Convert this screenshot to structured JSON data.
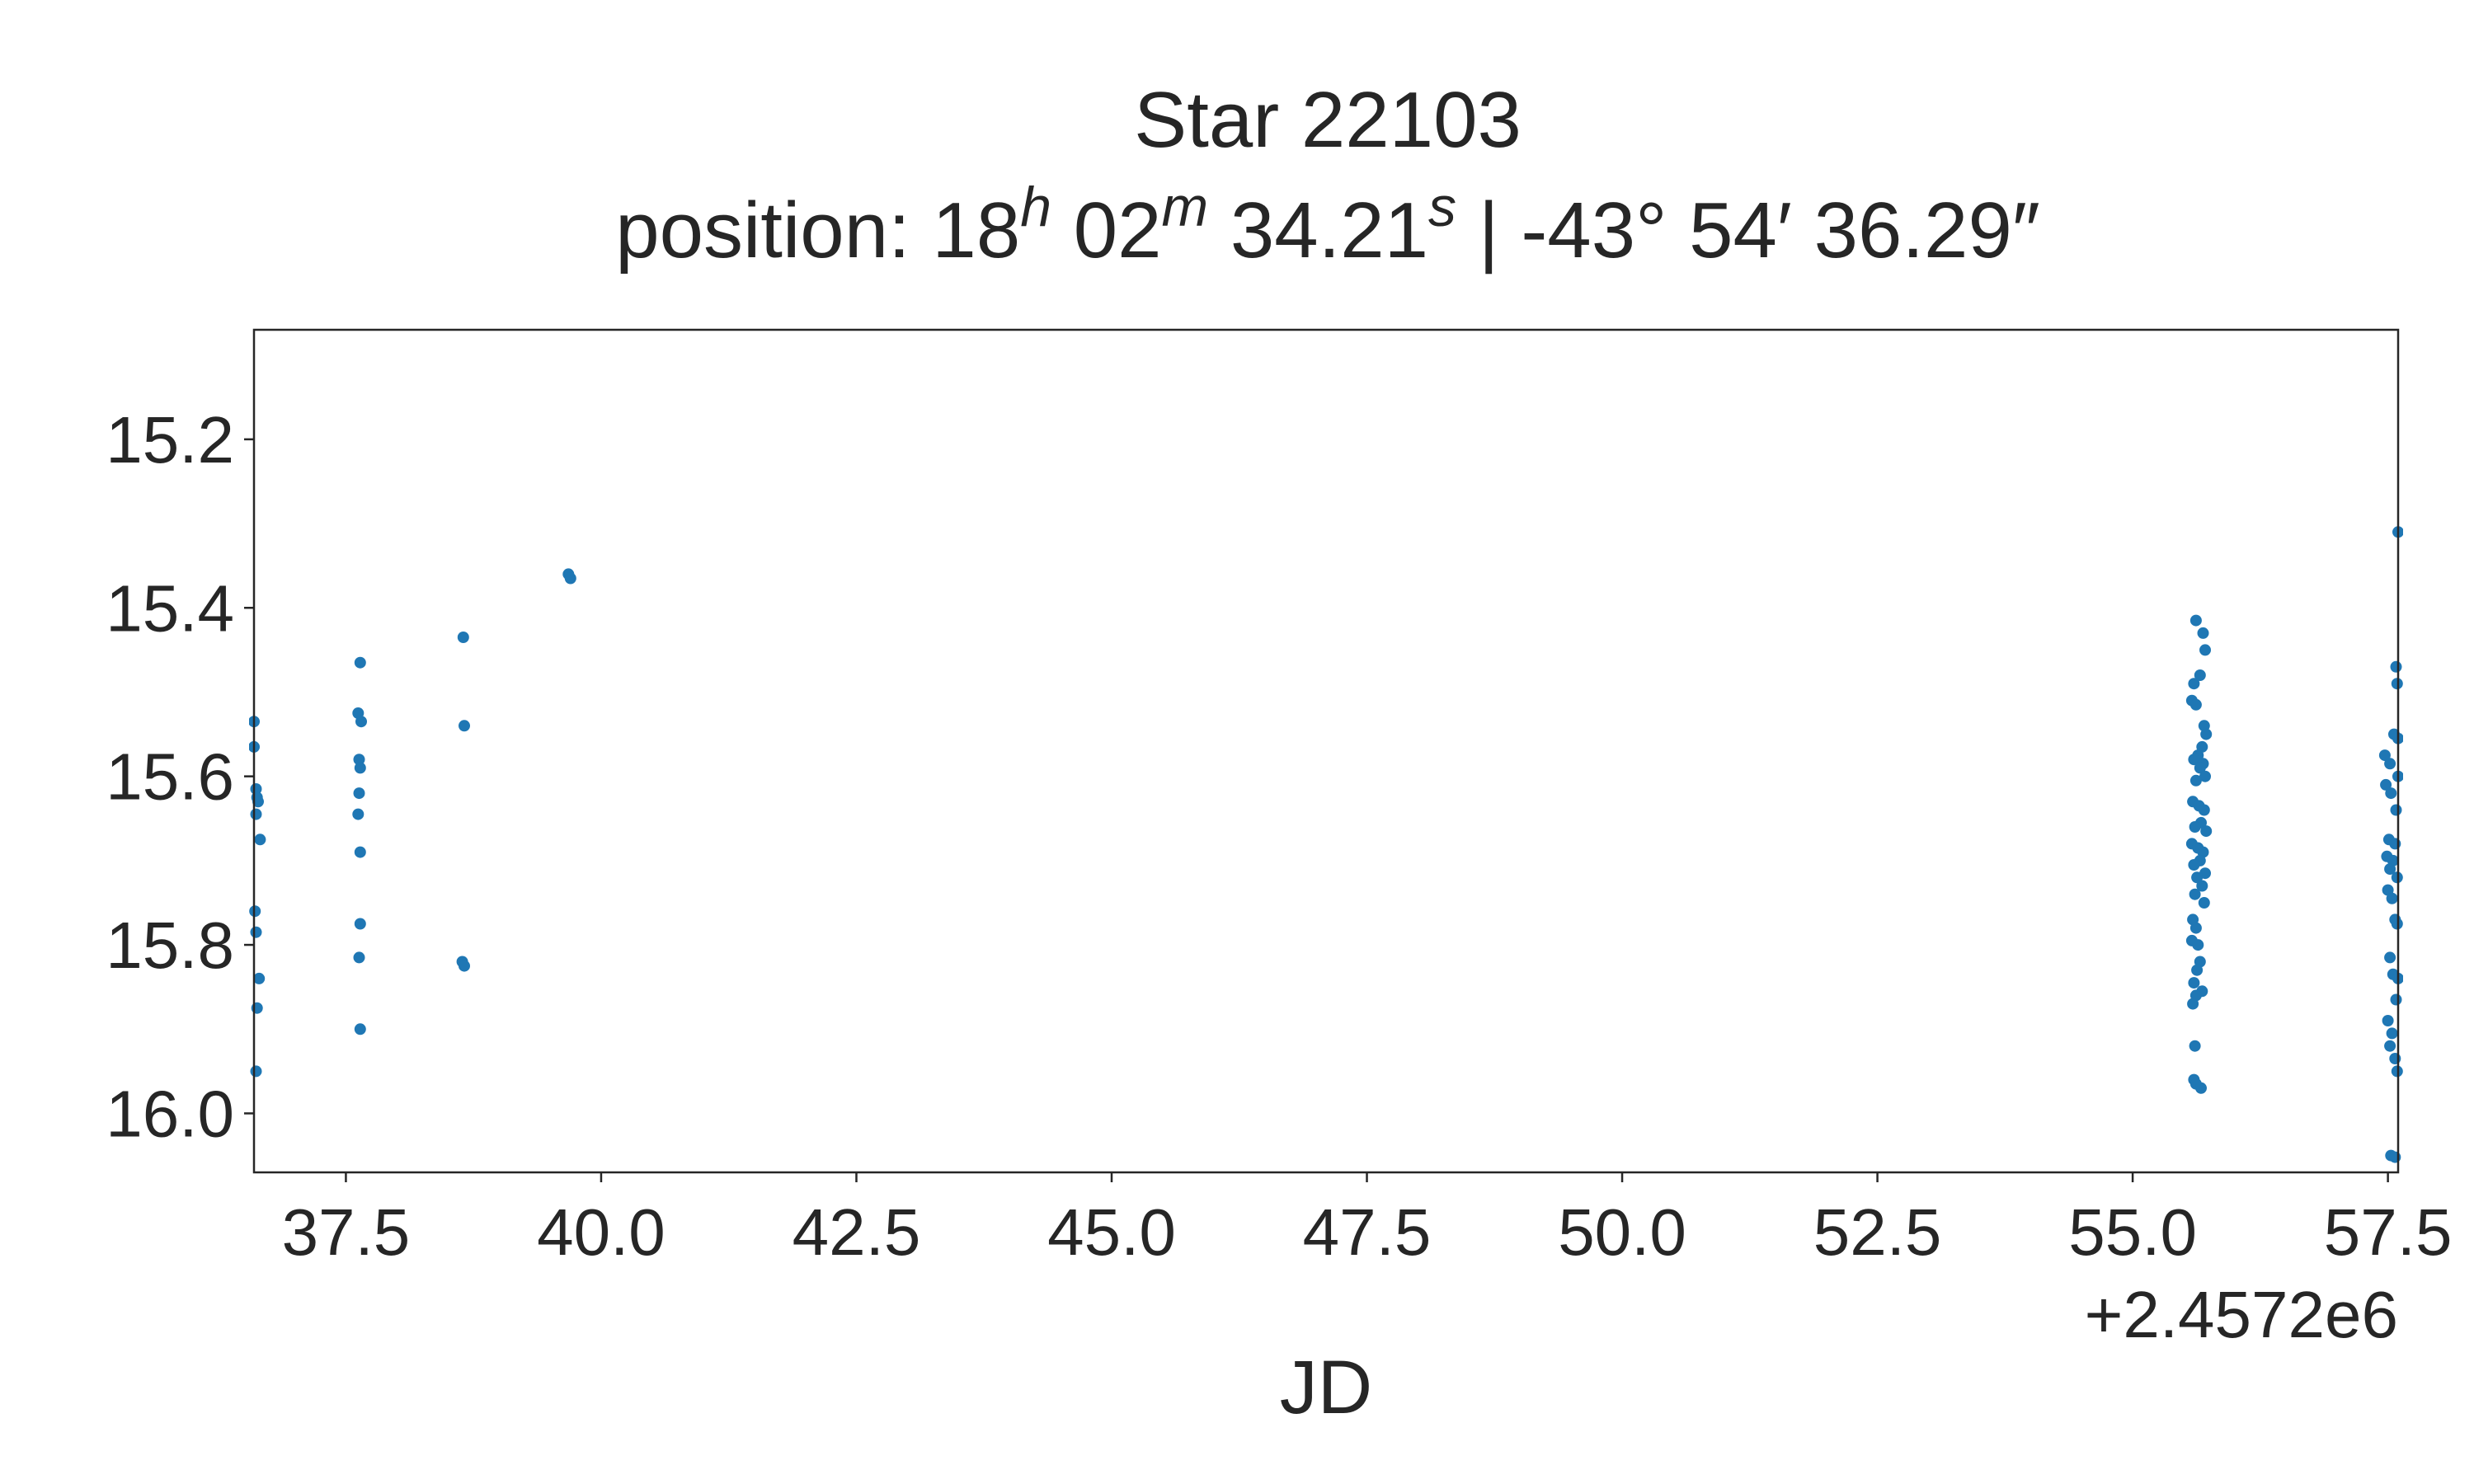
{
  "chart_data": {
    "type": "scatter",
    "title": "Star 22103",
    "subtitle_parts": {
      "prefix": "position: 18",
      "h": "h",
      "after_h": " 02",
      "m": "m",
      "after_m": " 34.21",
      "s": "s",
      "dec": " | -43° 54′ 36.29″"
    },
    "xlabel": "JD",
    "x_offset_label": "+2.4572e6",
    "x_offset": 2457200,
    "xlim": [
      36.6,
      57.6
    ],
    "ylim": [
      16.07,
      15.07
    ],
    "y_inverted": true,
    "grid": false,
    "x_ticks": [
      37.5,
      40.0,
      42.5,
      45.0,
      47.5,
      50.0,
      52.5,
      55.0,
      57.5
    ],
    "x_tick_labels": [
      "37.5",
      "40.0",
      "42.5",
      "45.0",
      "47.5",
      "50.0",
      "52.5",
      "55.0",
      "57.5"
    ],
    "y_ticks": [
      15.2,
      15.4,
      15.6,
      15.8,
      16.0
    ],
    "y_tick_labels": [
      "15.2",
      "15.4",
      "15.6",
      "15.8",
      "16.0"
    ],
    "color": "#1f77b4",
    "points": [
      {
        "x": 36.6,
        "y": 15.535
      },
      {
        "x": 36.6,
        "y": 15.565
      },
      {
        "x": 36.62,
        "y": 15.615
      },
      {
        "x": 36.63,
        "y": 15.625
      },
      {
        "x": 36.64,
        "y": 15.63
      },
      {
        "x": 36.62,
        "y": 15.645
      },
      {
        "x": 36.66,
        "y": 15.675
      },
      {
        "x": 36.61,
        "y": 15.76
      },
      {
        "x": 36.62,
        "y": 15.785
      },
      {
        "x": 36.65,
        "y": 15.84
      },
      {
        "x": 36.63,
        "y": 15.875
      },
      {
        "x": 36.62,
        "y": 15.95
      },
      {
        "x": 37.64,
        "y": 15.465
      },
      {
        "x": 37.62,
        "y": 15.525
      },
      {
        "x": 37.65,
        "y": 15.535
      },
      {
        "x": 37.63,
        "y": 15.58
      },
      {
        "x": 37.64,
        "y": 15.59
      },
      {
        "x": 37.63,
        "y": 15.62
      },
      {
        "x": 37.62,
        "y": 15.645
      },
      {
        "x": 37.64,
        "y": 15.69
      },
      {
        "x": 37.64,
        "y": 15.775
      },
      {
        "x": 37.63,
        "y": 15.815
      },
      {
        "x": 37.64,
        "y": 15.9
      },
      {
        "x": 38.65,
        "y": 15.435
      },
      {
        "x": 38.66,
        "y": 15.54
      },
      {
        "x": 38.64,
        "y": 15.82
      },
      {
        "x": 38.66,
        "y": 15.825
      },
      {
        "x": 39.68,
        "y": 15.36
      },
      {
        "x": 39.7,
        "y": 15.365
      },
      {
        "x": 55.62,
        "y": 15.415
      },
      {
        "x": 55.69,
        "y": 15.43
      },
      {
        "x": 55.71,
        "y": 15.45
      },
      {
        "x": 55.6,
        "y": 15.49
      },
      {
        "x": 55.66,
        "y": 15.48
      },
      {
        "x": 55.58,
        "y": 15.51
      },
      {
        "x": 55.62,
        "y": 15.515
      },
      {
        "x": 55.7,
        "y": 15.54
      },
      {
        "x": 55.72,
        "y": 15.55
      },
      {
        "x": 55.68,
        "y": 15.565
      },
      {
        "x": 55.64,
        "y": 15.575
      },
      {
        "x": 55.6,
        "y": 15.58
      },
      {
        "x": 55.69,
        "y": 15.585
      },
      {
        "x": 55.66,
        "y": 15.59
      },
      {
        "x": 55.71,
        "y": 15.6
      },
      {
        "x": 55.62,
        "y": 15.605
      },
      {
        "x": 55.59,
        "y": 15.63
      },
      {
        "x": 55.65,
        "y": 15.635
      },
      {
        "x": 55.7,
        "y": 15.64
      },
      {
        "x": 55.67,
        "y": 15.655
      },
      {
        "x": 55.61,
        "y": 15.66
      },
      {
        "x": 55.72,
        "y": 15.665
      },
      {
        "x": 55.58,
        "y": 15.68
      },
      {
        "x": 55.64,
        "y": 15.685
      },
      {
        "x": 55.69,
        "y": 15.69
      },
      {
        "x": 55.66,
        "y": 15.7
      },
      {
        "x": 55.6,
        "y": 15.705
      },
      {
        "x": 55.71,
        "y": 15.715
      },
      {
        "x": 55.63,
        "y": 15.72
      },
      {
        "x": 55.68,
        "y": 15.73
      },
      {
        "x": 55.61,
        "y": 15.74
      },
      {
        "x": 55.7,
        "y": 15.75
      },
      {
        "x": 55.59,
        "y": 15.77
      },
      {
        "x": 55.62,
        "y": 15.78
      },
      {
        "x": 55.58,
        "y": 15.795
      },
      {
        "x": 55.64,
        "y": 15.8
      },
      {
        "x": 55.66,
        "y": 15.82
      },
      {
        "x": 55.63,
        "y": 15.83
      },
      {
        "x": 55.6,
        "y": 15.845
      },
      {
        "x": 55.68,
        "y": 15.855
      },
      {
        "x": 55.62,
        "y": 15.86
      },
      {
        "x": 55.59,
        "y": 15.87
      },
      {
        "x": 55.61,
        "y": 15.92
      },
      {
        "x": 55.6,
        "y": 15.96
      },
      {
        "x": 55.62,
        "y": 15.965
      },
      {
        "x": 55.67,
        "y": 15.97
      },
      {
        "x": 57.6,
        "y": 15.31
      },
      {
        "x": 57.58,
        "y": 15.47
      },
      {
        "x": 57.59,
        "y": 15.49
      },
      {
        "x": 57.56,
        "y": 15.55
      },
      {
        "x": 57.6,
        "y": 15.555
      },
      {
        "x": 57.47,
        "y": 15.575
      },
      {
        "x": 57.52,
        "y": 15.585
      },
      {
        "x": 57.6,
        "y": 15.6
      },
      {
        "x": 57.48,
        "y": 15.61
      },
      {
        "x": 57.53,
        "y": 15.62
      },
      {
        "x": 57.58,
        "y": 15.64
      },
      {
        "x": 57.51,
        "y": 15.675
      },
      {
        "x": 57.57,
        "y": 15.68
      },
      {
        "x": 57.49,
        "y": 15.695
      },
      {
        "x": 57.55,
        "y": 15.7
      },
      {
        "x": 57.52,
        "y": 15.71
      },
      {
        "x": 57.59,
        "y": 15.72
      },
      {
        "x": 57.5,
        "y": 15.735
      },
      {
        "x": 57.54,
        "y": 15.745
      },
      {
        "x": 57.57,
        "y": 15.77
      },
      {
        "x": 57.59,
        "y": 15.775
      },
      {
        "x": 57.52,
        "y": 15.815
      },
      {
        "x": 57.55,
        "y": 15.835
      },
      {
        "x": 57.6,
        "y": 15.84
      },
      {
        "x": 57.58,
        "y": 15.865
      },
      {
        "x": 57.5,
        "y": 15.89
      },
      {
        "x": 57.54,
        "y": 15.905
      },
      {
        "x": 57.52,
        "y": 15.92
      },
      {
        "x": 57.57,
        "y": 15.935
      },
      {
        "x": 57.59,
        "y": 15.95
      },
      {
        "x": 57.53,
        "y": 16.05
      },
      {
        "x": 57.57,
        "y": 16.052
      }
    ]
  }
}
